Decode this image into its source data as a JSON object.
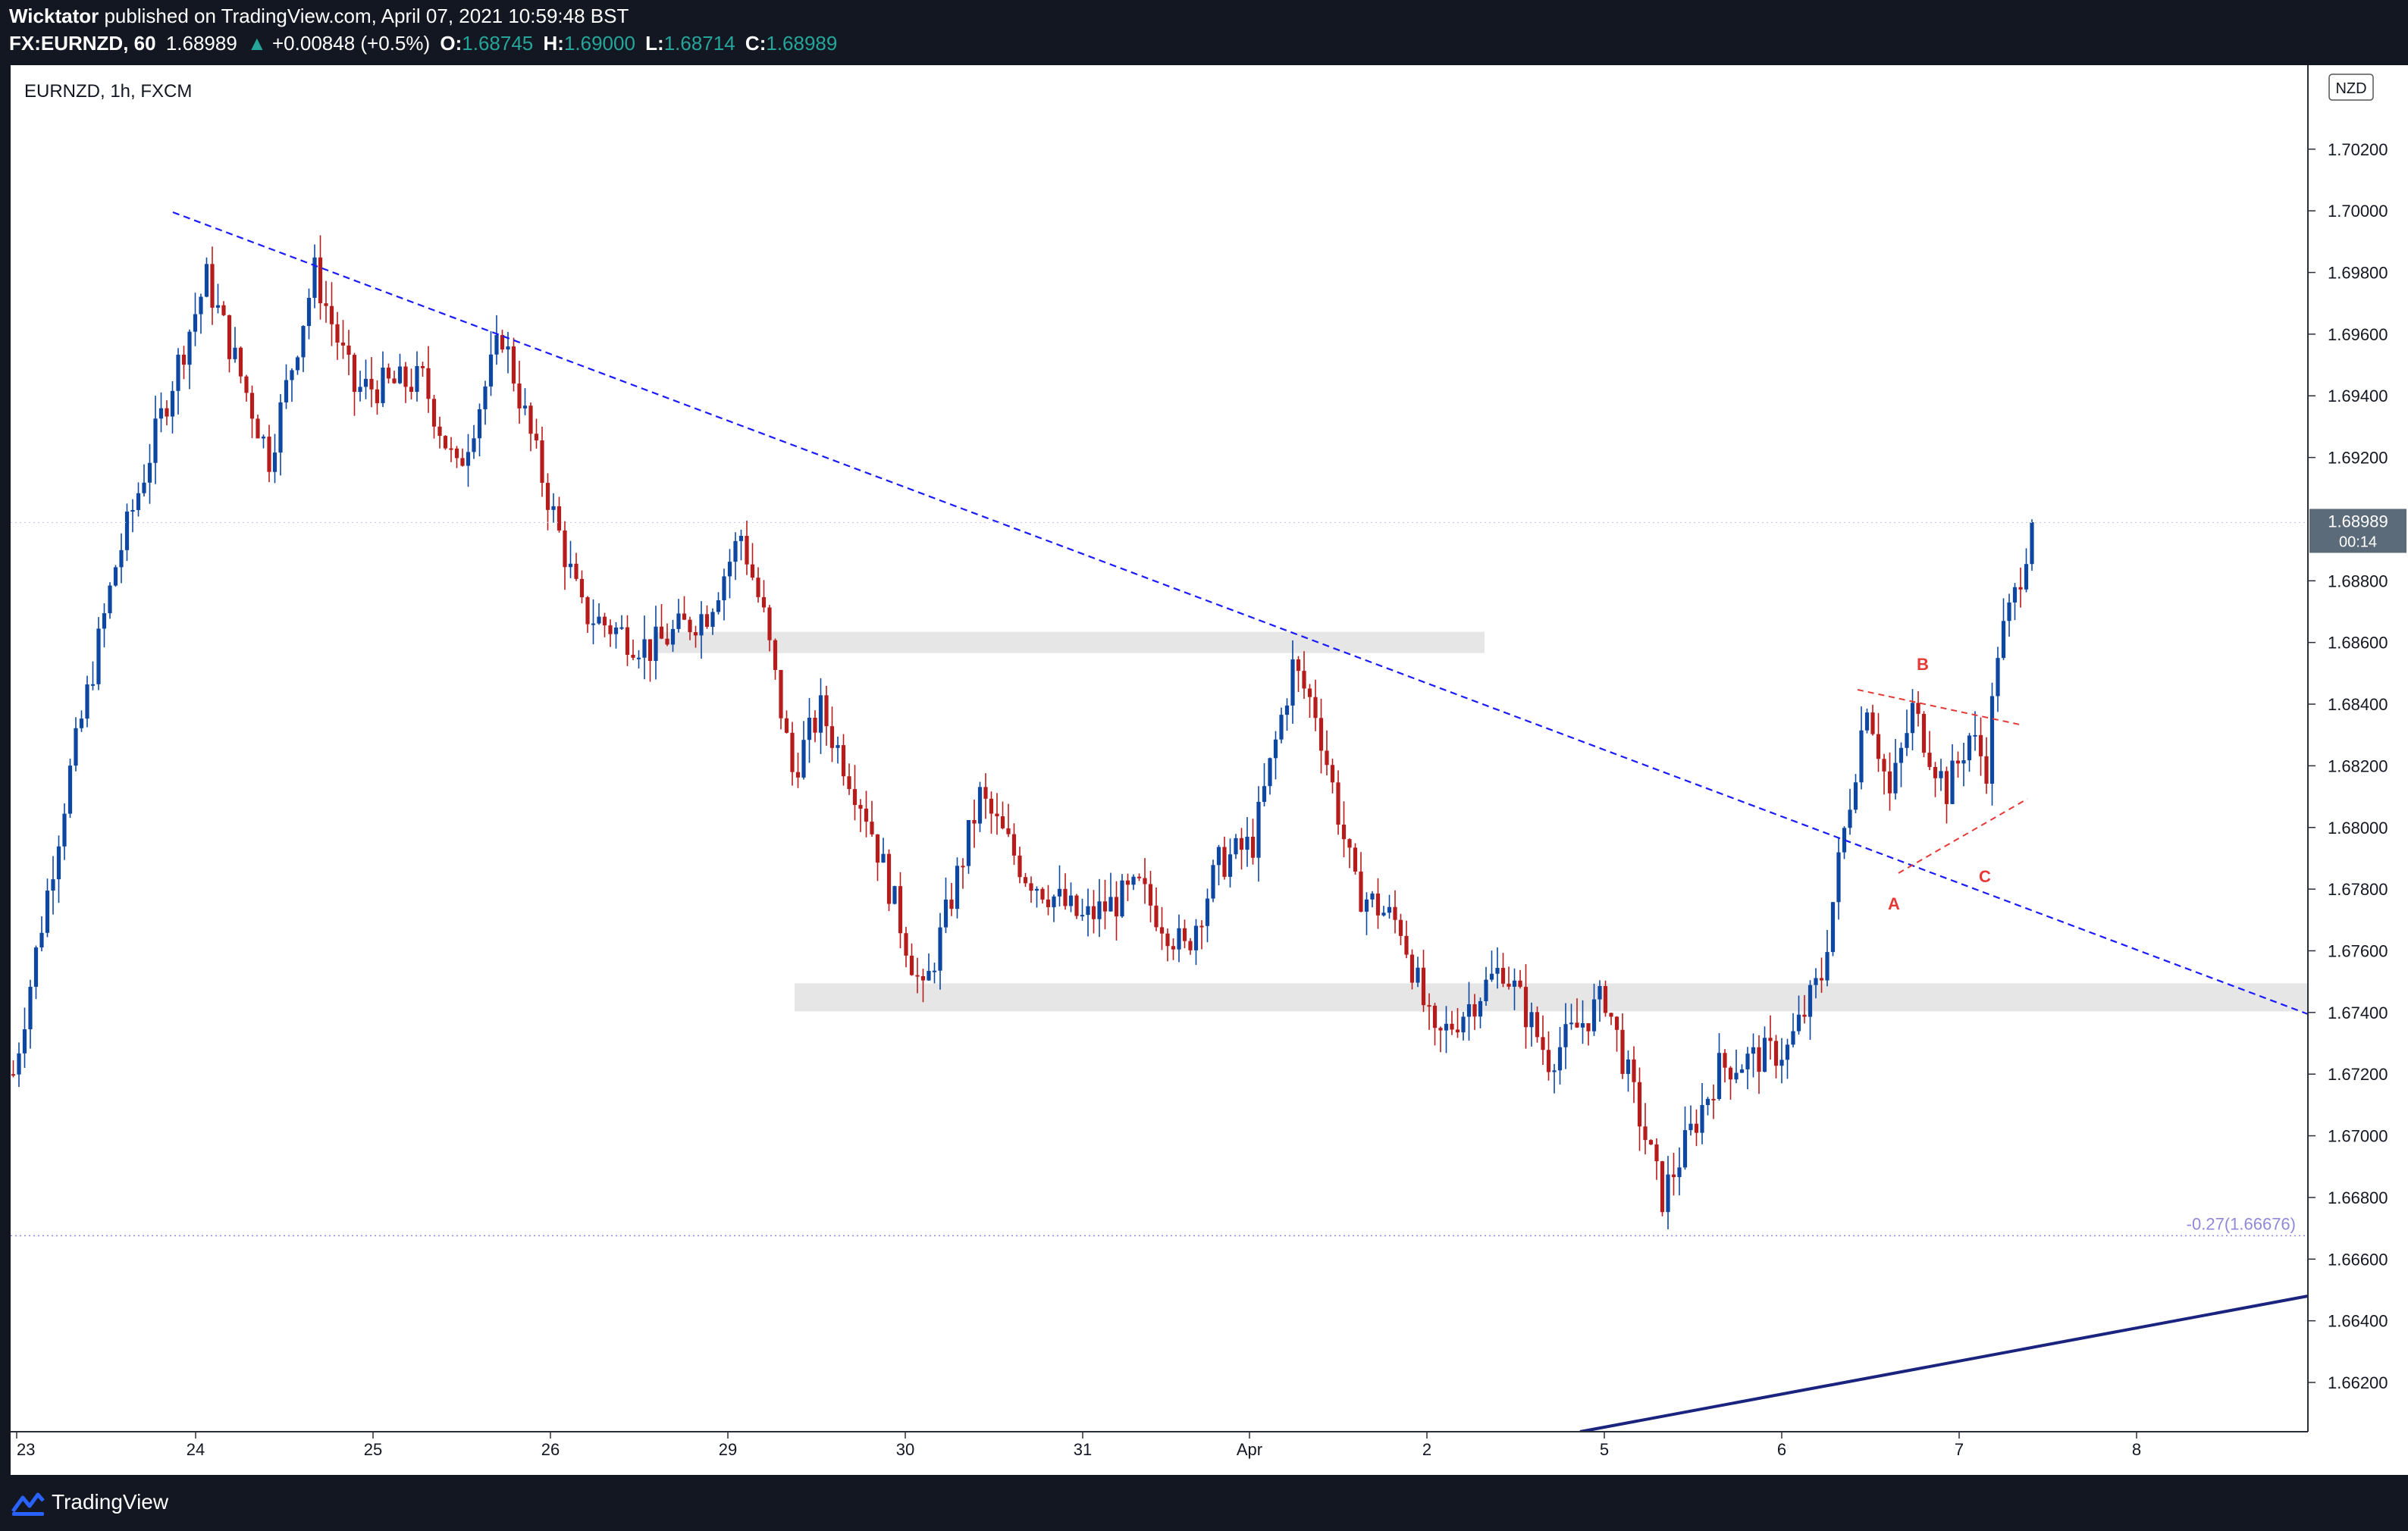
{
  "header": {
    "author": "Wicktator",
    "published": "published on TradingView.com, April 07, 2021 10:59:48 BST",
    "symbol": "FX:EURNZD, 60",
    "last": "1.68989",
    "change_arrow": "▲",
    "change": "+0.00848 (+0.5%)",
    "o_label": "O:",
    "o_value": "1.68745",
    "h_label": "H:",
    "h_value": "1.69000",
    "l_label": "L:",
    "l_value": "1.68714",
    "c_label": "C:",
    "c_value": "1.68989"
  },
  "chart_data": {
    "type": "candlestick",
    "title": "EURNZD, 1h, FXCM",
    "currency_badge": "NZD",
    "ylim": [
      1.6608,
      1.705
    ],
    "y_ticks": [
      "1.70200",
      "1.70000",
      "1.69800",
      "1.69600",
      "1.69400",
      "1.69200",
      "1.68800",
      "1.68600",
      "1.68400",
      "1.68200",
      "1.68000",
      "1.67800",
      "1.67600",
      "1.67400",
      "1.67200",
      "1.67000",
      "1.66800",
      "1.66600",
      "1.66400",
      "1.66200"
    ],
    "x_tick_labels": [
      "23",
      "24",
      "25",
      "26",
      "29",
      "30",
      "31",
      "Apr",
      "2",
      "5",
      "6",
      "7",
      "8"
    ],
    "last_price_label": "1.68989",
    "countdown": "00:14",
    "colors": {
      "up": "#0d47a1",
      "down": "#b71c1c",
      "trendline": "#1a1aff",
      "zone": "#e6e6e6",
      "pattern": "#e53935",
      "fib": "#9088d8"
    },
    "annotations": {
      "fib_label": "-0.27(1.66676)",
      "fib_level": 1.66676,
      "pattern_labels": [
        "A",
        "B",
        "C"
      ]
    },
    "key_levels": {
      "resistance_zone": [
        1.6854,
        1.686
      ],
      "support_zone": [
        1.6737,
        1.6746
      ]
    },
    "anchors": [
      {
        "x": 0,
        "y": 1.672
      },
      {
        "x": 10,
        "y": 1.6818
      },
      {
        "x": 18,
        "y": 1.6885
      },
      {
        "x": 28,
        "y": 1.6945
      },
      {
        "x": 34,
        "y": 1.6978
      },
      {
        "x": 45,
        "y": 1.692
      },
      {
        "x": 53,
        "y": 1.698
      },
      {
        "x": 60,
        "y": 1.6942
      },
      {
        "x": 72,
        "y": 1.6945
      },
      {
        "x": 78,
        "y": 1.6915
      },
      {
        "x": 86,
        "y": 1.696
      },
      {
        "x": 92,
        "y": 1.692
      },
      {
        "x": 100,
        "y": 1.687
      },
      {
        "x": 112,
        "y": 1.6858
      },
      {
        "x": 122,
        "y": 1.687
      },
      {
        "x": 128,
        "y": 1.6895
      },
      {
        "x": 132,
        "y": 1.6868
      },
      {
        "x": 137,
        "y": 1.6818
      },
      {
        "x": 142,
        "y": 1.6838
      },
      {
        "x": 150,
        "y": 1.6805
      },
      {
        "x": 160,
        "y": 1.6745
      },
      {
        "x": 170,
        "y": 1.681
      },
      {
        "x": 178,
        "y": 1.6785
      },
      {
        "x": 188,
        "y": 1.677
      },
      {
        "x": 198,
        "y": 1.678
      },
      {
        "x": 206,
        "y": 1.676
      },
      {
        "x": 212,
        "y": 1.6788
      },
      {
        "x": 218,
        "y": 1.6795
      },
      {
        "x": 225,
        "y": 1.6852
      },
      {
        "x": 229,
        "y": 1.6838
      },
      {
        "x": 236,
        "y": 1.678
      },
      {
        "x": 244,
        "y": 1.6768
      },
      {
        "x": 250,
        "y": 1.673
      },
      {
        "x": 262,
        "y": 1.6755
      },
      {
        "x": 270,
        "y": 1.6725
      },
      {
        "x": 280,
        "y": 1.6745
      },
      {
        "x": 290,
        "y": 1.668
      },
      {
        "x": 300,
        "y": 1.6722
      },
      {
        "x": 312,
        "y": 1.6728
      },
      {
        "x": 318,
        "y": 1.6752
      },
      {
        "x": 321,
        "y": 1.6788
      },
      {
        "x": 326,
        "y": 1.6842
      },
      {
        "x": 330,
        "y": 1.681
      },
      {
        "x": 334,
        "y": 1.6838
      },
      {
        "x": 340,
        "y": 1.6812
      },
      {
        "x": 344,
        "y": 1.683
      },
      {
        "x": 347,
        "y": 1.682
      },
      {
        "x": 349,
        "y": 1.6858
      },
      {
        "x": 352,
        "y": 1.6875
      },
      {
        "x": 355,
        "y": 1.6899
      }
    ],
    "total_bars": 356
  }
}
